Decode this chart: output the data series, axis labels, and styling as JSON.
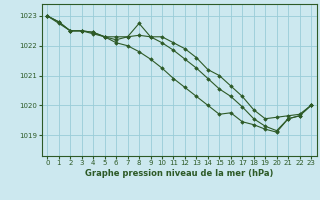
{
  "title": "Graphe pression niveau de la mer (hPa)",
  "background_color": "#cce8ef",
  "grid_color": "#99ccd8",
  "line_color": "#2d5a27",
  "marker_color": "#2d5a27",
  "x_ticks": [
    0,
    1,
    2,
    3,
    4,
    5,
    6,
    7,
    8,
    9,
    10,
    11,
    12,
    13,
    14,
    15,
    16,
    17,
    18,
    19,
    20,
    21,
    22,
    23
  ],
  "y_ticks": [
    1019,
    1020,
    1021,
    1022,
    1023
  ],
  "ylim": [
    1018.3,
    1023.4
  ],
  "xlim": [
    -0.5,
    23.5
  ],
  "series": [
    [
      1023.0,
      1022.8,
      1022.5,
      1022.5,
      1022.4,
      1022.3,
      1022.3,
      1022.3,
      1022.75,
      1022.3,
      1022.3,
      1022.1,
      1021.9,
      1021.6,
      1021.2,
      1021.0,
      1020.65,
      1020.3,
      1019.85,
      1019.55,
      1019.6,
      1019.65,
      1019.7,
      1020.0
    ],
    [
      1023.0,
      1022.8,
      1022.5,
      1022.5,
      1022.45,
      1022.3,
      1022.2,
      1022.3,
      1022.35,
      1022.3,
      1022.1,
      1021.85,
      1021.55,
      1021.25,
      1020.9,
      1020.55,
      1020.3,
      1019.95,
      1019.55,
      1019.3,
      1019.15,
      1019.55,
      1019.65,
      1020.0
    ],
    [
      1023.0,
      1022.75,
      1022.5,
      1022.5,
      1022.45,
      1022.3,
      1022.1,
      1022.0,
      1021.8,
      1021.55,
      1021.25,
      1020.9,
      1020.6,
      1020.3,
      1020.0,
      1019.7,
      1019.75,
      1019.45,
      1019.35,
      1019.2,
      1019.1,
      1019.55,
      1019.65,
      1020.0
    ]
  ]
}
